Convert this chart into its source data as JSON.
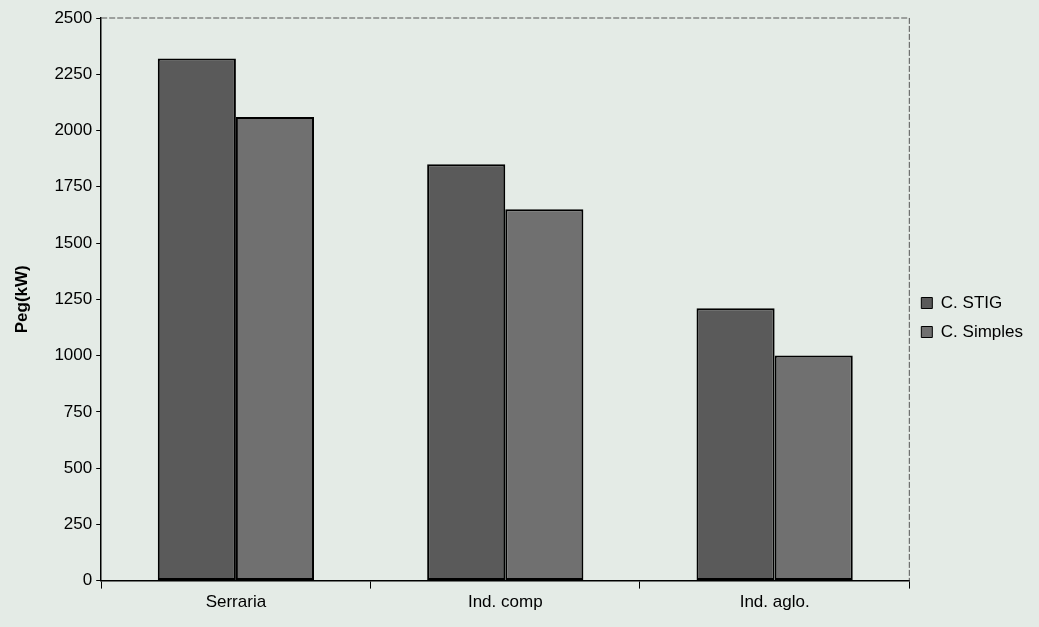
{
  "chart_data": {
    "type": "bar",
    "ylabel": "Peg(kW)",
    "categories": [
      "Serraria",
      "Ind. comp",
      "Ind. aglo."
    ],
    "series": [
      {
        "name": "C. STIG",
        "color": "#5a5a5a",
        "values": [
          2320,
          1850,
          1210
        ]
      },
      {
        "name": "C. Simples",
        "color": "#707070",
        "values": [
          2060,
          1650,
          1000
        ]
      }
    ],
    "ylim": [
      0,
      2500
    ],
    "yticks": [
      0,
      250,
      500,
      750,
      1000,
      1250,
      1500,
      1750,
      2000,
      2250,
      2500
    ],
    "grid": false,
    "legend": "right"
  }
}
